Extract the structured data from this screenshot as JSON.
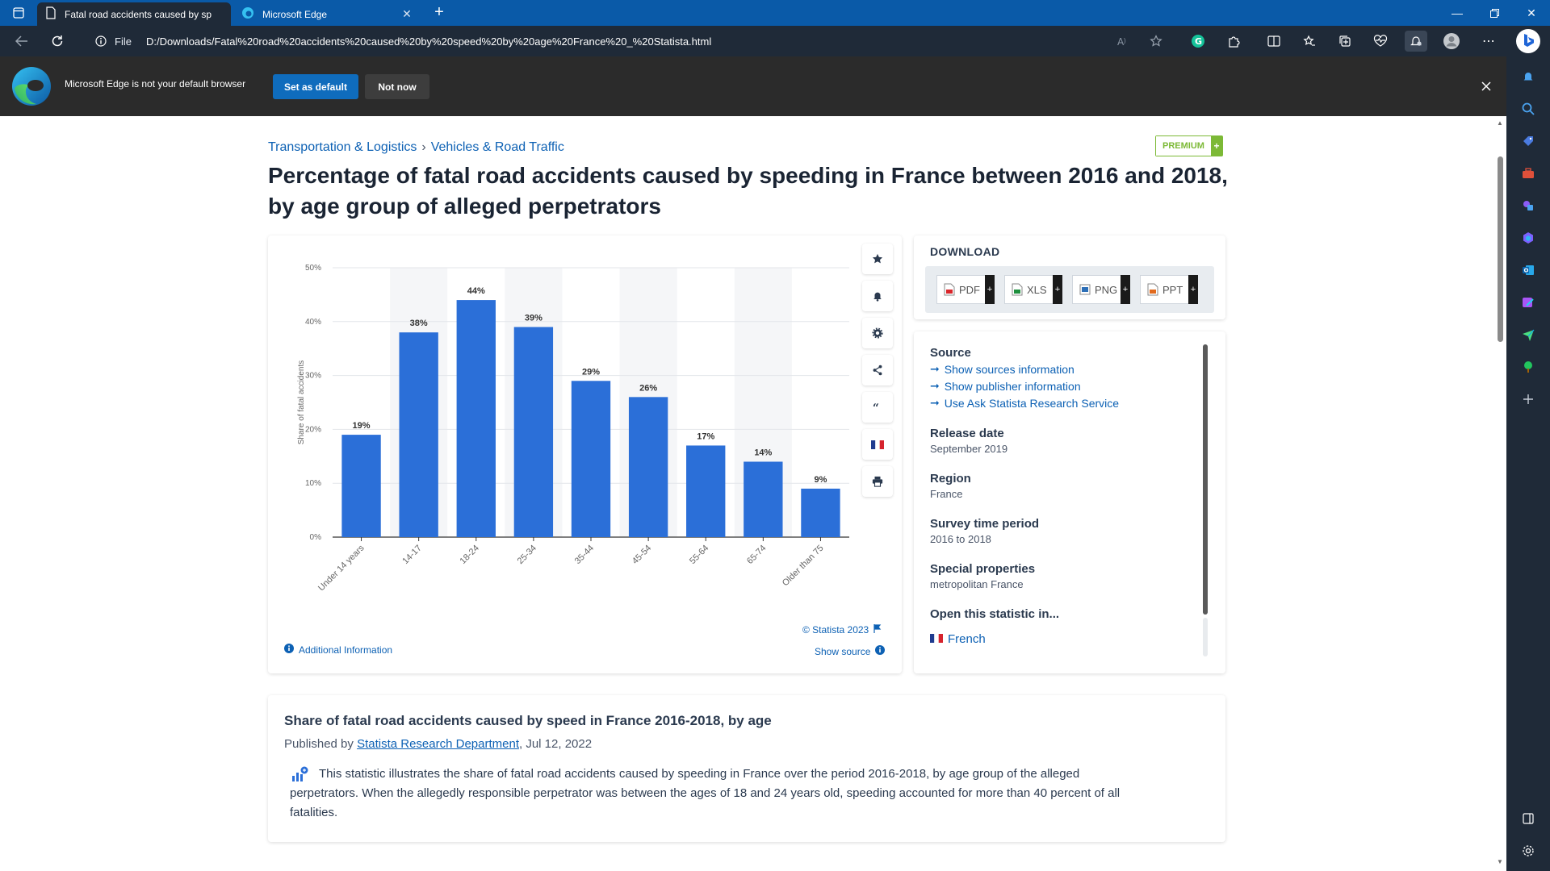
{
  "browser": {
    "tabs": [
      {
        "title": "Fatal road accidents caused by sp",
        "active": true
      },
      {
        "title": "Microsoft Edge",
        "active": false
      }
    ],
    "file_label": "File",
    "url": "D:/Downloads/Fatal%20road%20accidents%20caused%20by%20speed%20by%20age%20France%20_%20Statista.html",
    "infobar": {
      "message": "Microsoft Edge is not your default browser",
      "set_default": "Set as default",
      "not_now": "Not now"
    }
  },
  "page": {
    "breadcrumb": [
      "Transportation & Logistics",
      "Vehicles & Road Traffic"
    ],
    "breadcrumb_sep": "›",
    "premium_label": "PREMIUM",
    "premium_plus": "+",
    "title": "Percentage of fatal road accidents caused by speeding in France between 2016 and 2018, by age group of alleged perpetrators",
    "chart_footer": {
      "copyright": "© Statista 2023",
      "show_source": "Show source",
      "additional_info": "Additional Information"
    },
    "download": {
      "title": "DOWNLOAD",
      "buttons": [
        "PDF",
        "XLS",
        "PNG",
        "PPT"
      ],
      "plus": "+"
    },
    "meta": {
      "source_heading": "Source",
      "source_links": [
        "Show sources information",
        "Show publisher information",
        "Use Ask Statista Research Service"
      ],
      "release_heading": "Release date",
      "release_value": "September 2019",
      "region_heading": "Region",
      "region_value": "France",
      "survey_heading": "Survey time period",
      "survey_value": "2016 to 2018",
      "special_heading": "Special properties",
      "special_value": "metropolitan France",
      "open_heading": "Open this statistic in...",
      "open_link": "French"
    },
    "description": {
      "title": "Share of fatal road accidents caused by speed in France 2016-2018, by age",
      "published_prefix": "Published by ",
      "author": "Statista Research Department",
      "date": ", Jul 12, 2022",
      "text": "This statistic illustrates the share of fatal road accidents caused by speeding in France over the period 2016-2018, by age group of the alleged perpetrators. When the allegedly responsible perpetrator was between the ages of 18 and 24 years old, speeding accounted for more than 40 percent of all fatalities."
    }
  },
  "chart_data": {
    "type": "bar",
    "categories": [
      "Under 14 years",
      "14-17",
      "18-24",
      "25-34",
      "35-44",
      "45-54",
      "55-64",
      "65-74",
      "Older than 75"
    ],
    "values": [
      19,
      38,
      44,
      39,
      29,
      26,
      17,
      14,
      9
    ],
    "data_labels": [
      "19%",
      "38%",
      "44%",
      "39%",
      "29%",
      "26%",
      "17%",
      "14%",
      "9%"
    ],
    "y_ticks": [
      "0%",
      "10%",
      "20%",
      "30%",
      "40%",
      "50%"
    ],
    "ylabel": "Share of fatal accidents",
    "xlabel": "",
    "ylim": [
      0,
      50
    ],
    "bar_color": "#2b6fd8",
    "grid": true
  },
  "colors": {
    "tab_strip": "#0a5aa8",
    "toolbar": "#1f2a38",
    "infobar": "#2b2b2b",
    "accent": "#0f6cbd",
    "link": "#0d61b4",
    "premium": "#7cb936"
  }
}
